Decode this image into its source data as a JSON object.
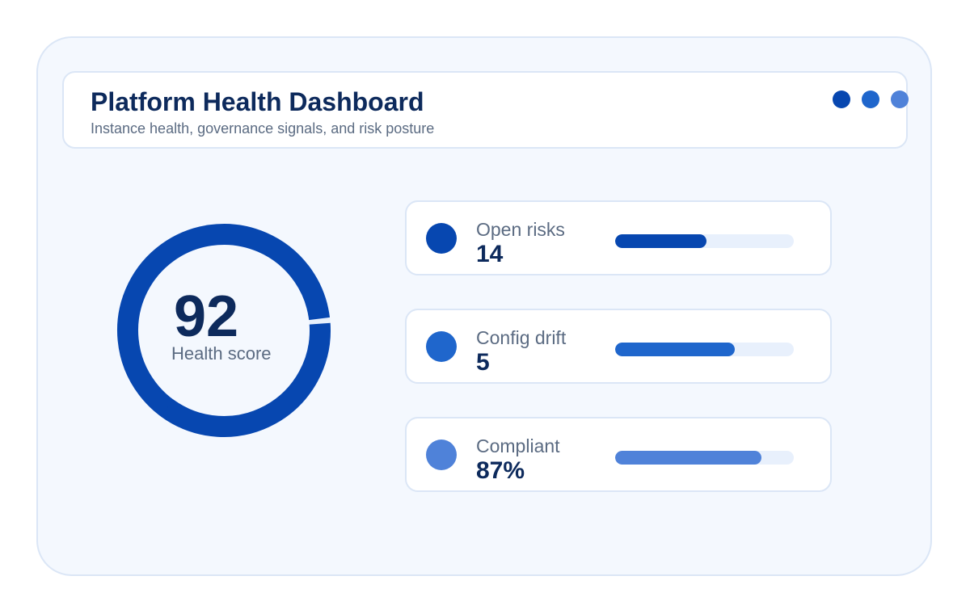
{
  "header": {
    "title": "Platform Health Dashboard",
    "subtitle": "Instance health, governance signals, and risk posture",
    "window_dot_colors": [
      "#0747b0",
      "#1f66cc",
      "#4f82d9"
    ]
  },
  "health": {
    "score": "92",
    "label": "Health score",
    "gauge_fraction": 0.92,
    "color": "#0747b0",
    "track_color": "#e8f0fc"
  },
  "metrics": [
    {
      "label": "Open risks",
      "value": "14",
      "color": "#0747b0",
      "bar_fraction": 0.51
    },
    {
      "label": "Config drift",
      "value": "5",
      "color": "#1f66cc",
      "bar_fraction": 0.67
    },
    {
      "label": "Compliant",
      "value": "87%",
      "color": "#4f82d9",
      "bar_fraction": 0.82
    }
  ]
}
